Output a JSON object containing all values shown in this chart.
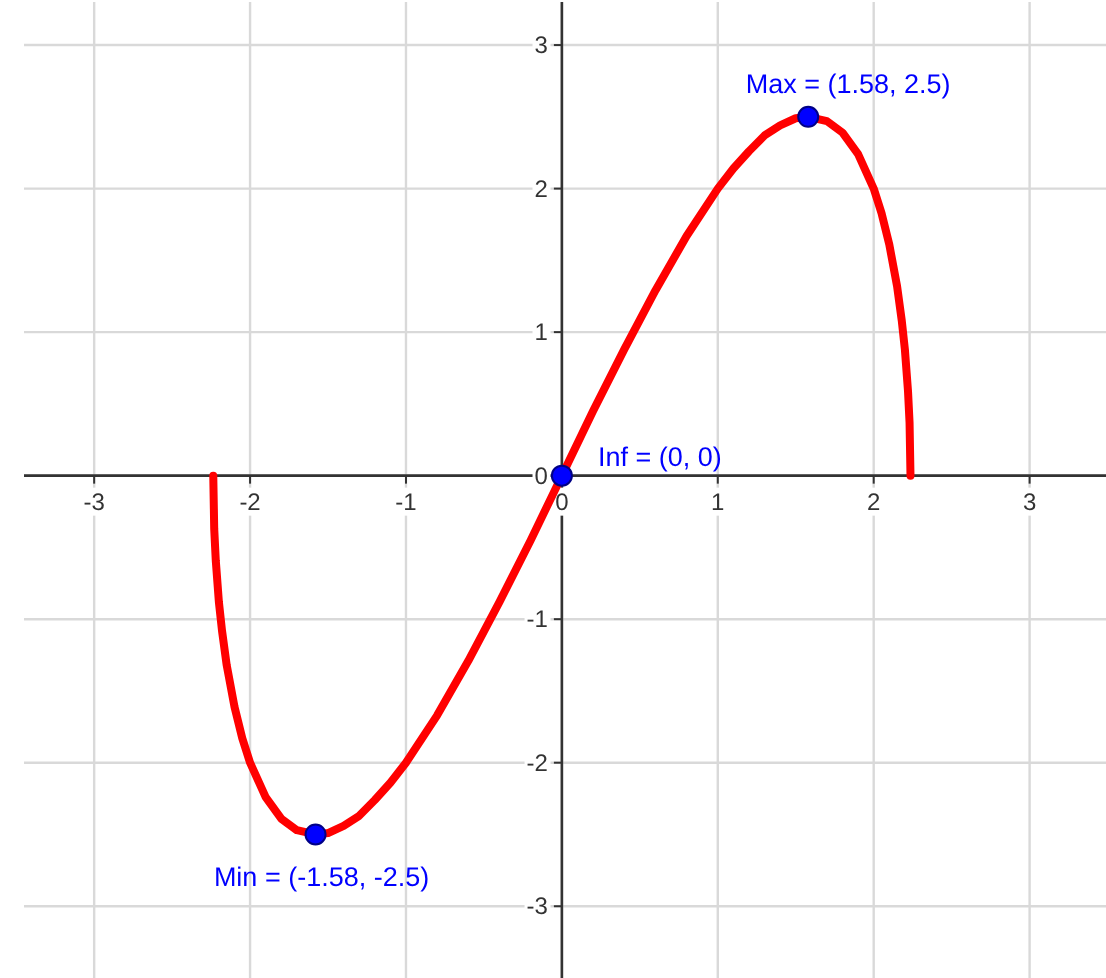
{
  "chart_data": {
    "type": "line",
    "xlim": [
      -3.45,
      3.49
    ],
    "ylim": [
      -3.5,
      3.3
    ],
    "xticks": [
      -3,
      -2,
      -1,
      0,
      1,
      2,
      3
    ],
    "yticks": [
      -3,
      -2,
      -1,
      0,
      1,
      2,
      3
    ],
    "grid": true,
    "series": [
      {
        "type": "line",
        "color": "#ff0000",
        "x": [
          -2.236,
          -2.23,
          -2.22,
          -2.2,
          -2.18,
          -2.15,
          -2.1,
          -2.05,
          -2.0,
          -1.9,
          -1.8,
          -1.7,
          -1.58,
          -1.5,
          -1.4,
          -1.3,
          -1.2,
          -1.1,
          -1.0,
          -0.8,
          -0.6,
          -0.4,
          -0.2,
          0,
          0.2,
          0.4,
          0.6,
          0.8,
          1.0,
          1.1,
          1.2,
          1.3,
          1.4,
          1.5,
          1.58,
          1.7,
          1.8,
          1.9,
          2.0,
          2.05,
          2.1,
          2.15,
          2.18,
          2.2,
          2.22,
          2.23,
          2.236
        ],
        "values": [
          0,
          -0.37,
          -0.59,
          -0.88,
          -1.08,
          -1.32,
          -1.61,
          -1.83,
          -2.0,
          -2.24,
          -2.39,
          -2.47,
          -2.5,
          -2.49,
          -2.44,
          -2.37,
          -2.26,
          -2.14,
          -2.0,
          -1.67,
          -1.29,
          -0.88,
          -0.45,
          0,
          0.45,
          0.88,
          1.29,
          1.67,
          2.0,
          2.14,
          2.26,
          2.37,
          2.44,
          2.49,
          2.5,
          2.47,
          2.39,
          2.24,
          2.0,
          1.83,
          1.61,
          1.32,
          1.08,
          0.88,
          0.59,
          0.37,
          0
        ]
      },
      {
        "type": "scatter",
        "color": "#0000ff",
        "marker": "circle",
        "x": [
          -1.58,
          0,
          1.58
        ],
        "values": [
          -2.5,
          0,
          2.5
        ]
      }
    ],
    "annotations": [
      {
        "text": "Max = (1.58, 2.5)",
        "x": 1.58,
        "y": 2.5
      },
      {
        "text": "Inf = (0, 0)",
        "x": 0,
        "y": 0
      },
      {
        "text": "Min = (-1.58, -2.5)",
        "x": -1.58,
        "y": -2.5
      }
    ]
  }
}
